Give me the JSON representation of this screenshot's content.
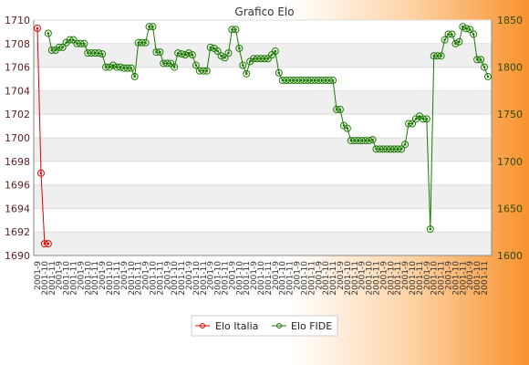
{
  "chart_data": {
    "type": "line",
    "title": "Grafico Elo",
    "left_axis": {
      "ylim": [
        1690,
        1710
      ],
      "ticks": [
        1690,
        1692,
        1694,
        1696,
        1698,
        1700,
        1702,
        1704,
        1706,
        1708,
        1710
      ]
    },
    "right_axis": {
      "ylim": [
        1600,
        1850
      ],
      "ticks": [
        1600,
        1650,
        1700,
        1750,
        1800,
        1850
      ]
    },
    "x_tick_labels": [
      "2001-9",
      "2001-10",
      "2001-11"
    ],
    "grid": true,
    "legend_position": "bottom",
    "series": [
      {
        "name": "Elo Italia",
        "axis": "left",
        "color": "#e00000",
        "values": [
          1709.3,
          1697.0,
          1691.0,
          1691.0
        ]
      },
      {
        "name": "Elo FIDE",
        "axis": "right",
        "color": "#1a7a00",
        "x_start": 3,
        "values": [
          1836,
          1818,
          1818,
          1821,
          1821,
          1826,
          1829,
          1829,
          1825,
          1825,
          1825,
          1815,
          1815,
          1815,
          1815,
          1814,
          1800,
          1800,
          1802,
          1800,
          1800,
          1799,
          1799,
          1799,
          1790,
          1826,
          1826,
          1826,
          1843,
          1843,
          1816,
          1816,
          1804,
          1804,
          1804,
          1800,
          1815,
          1814,
          1813,
          1815,
          1813,
          1802,
          1796,
          1796,
          1796,
          1821,
          1820,
          1817,
          1812,
          1810,
          1815,
          1840,
          1840,
          1820,
          1802,
          1793,
          1806,
          1809,
          1809,
          1809,
          1809,
          1809,
          1813,
          1817,
          1794,
          1786,
          1786,
          1786,
          1786,
          1786,
          1786,
          1786,
          1786,
          1786,
          1786,
          1786,
          1786,
          1786,
          1786,
          1786,
          1755,
          1755,
          1738,
          1735,
          1722,
          1722,
          1722,
          1722,
          1722,
          1722,
          1723,
          1713,
          1713,
          1713,
          1713,
          1713,
          1713,
          1713,
          1713,
          1718,
          1740,
          1740,
          1745,
          1748,
          1745,
          1745,
          1628,
          1812,
          1812,
          1812,
          1829,
          1835,
          1835,
          1825,
          1827,
          1843,
          1841,
          1840,
          1835,
          1808,
          1808,
          1800,
          1790
        ]
      }
    ]
  }
}
